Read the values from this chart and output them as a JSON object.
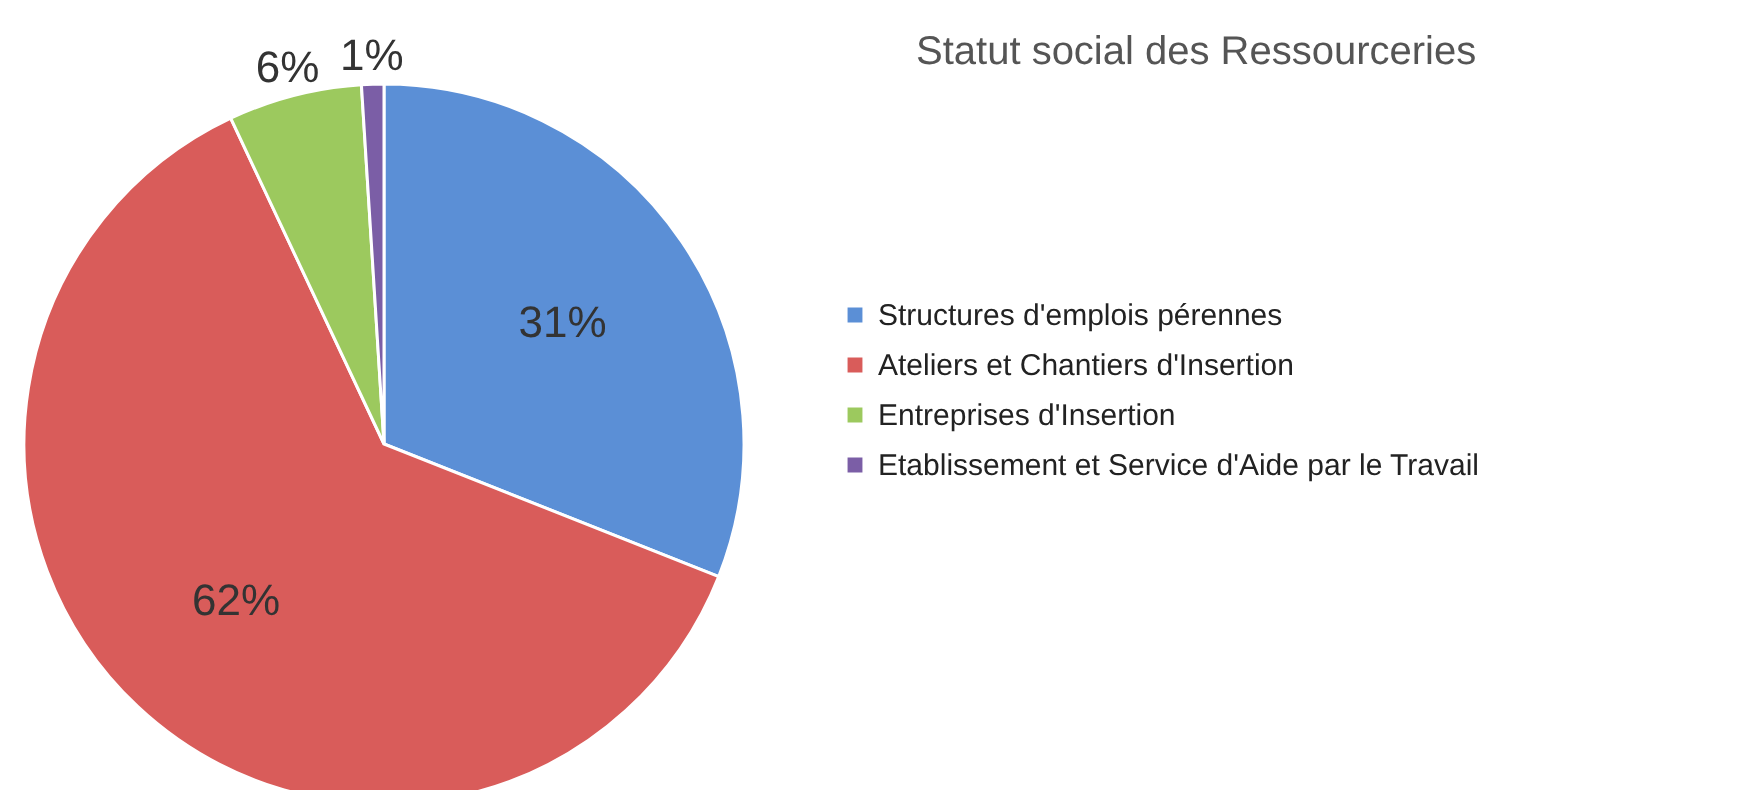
{
  "chart_data": {
    "type": "pie",
    "title": "Statut social des Ressourceries",
    "categories": [
      "Structures d'emplois pérennes",
      "Ateliers et Chantiers d'Insertion",
      "Entreprises d'Insertion",
      "Etablissement et Service d'Aide par le Travail"
    ],
    "values": [
      31,
      62,
      6,
      1
    ],
    "colors": [
      "#5b8fd6",
      "#d95c5a",
      "#9cc95e",
      "#7b5ea6"
    ],
    "value_labels": [
      "31%",
      "62%",
      "6%",
      "1%"
    ],
    "legend": "right"
  }
}
